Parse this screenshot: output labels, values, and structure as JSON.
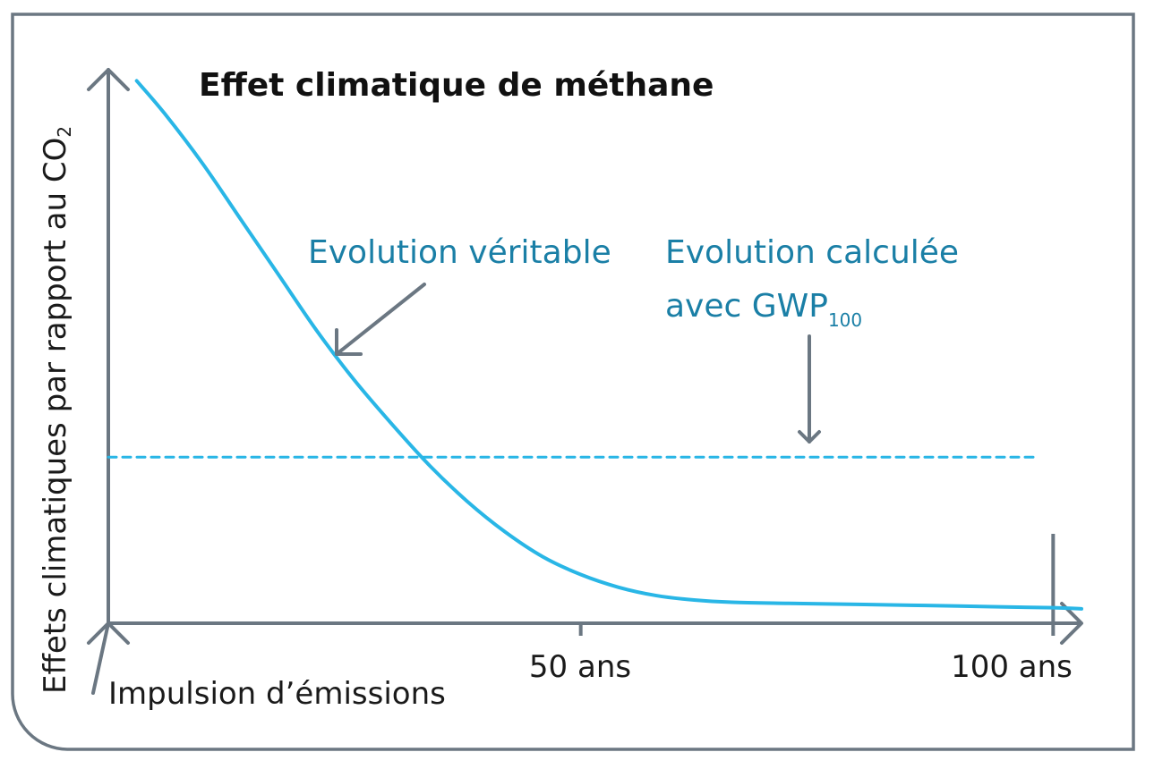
{
  "chart_data": {
    "type": "line",
    "title": "Effet climatique de méthane",
    "ylabel": {
      "main": "Effets climatiques par rapport au CO",
      "subscript": "2"
    },
    "xlabel": "",
    "x_origin_label": "Impulsion d’émissions",
    "x_ticks": [
      {
        "value": 50,
        "label": "50 ans"
      },
      {
        "value": 100,
        "label": "100 ans"
      }
    ],
    "xlim": [
      0,
      103
    ],
    "ylim": [
      0,
      1
    ],
    "series": [
      {
        "label": "Evolution véritable",
        "style": "solid",
        "color": "#29b6e6",
        "points": [
          [
            3,
            0.98
          ],
          [
            6,
            0.92
          ],
          [
            10,
            0.83
          ],
          [
            14,
            0.73
          ],
          [
            18,
            0.63
          ],
          [
            22,
            0.53
          ],
          [
            26,
            0.44
          ],
          [
            30,
            0.36
          ],
          [
            34,
            0.285
          ],
          [
            38,
            0.22
          ],
          [
            42,
            0.165
          ],
          [
            46,
            0.12
          ],
          [
            50,
            0.088
          ],
          [
            54,
            0.065
          ],
          [
            58,
            0.05
          ],
          [
            62,
            0.042
          ],
          [
            66,
            0.038
          ],
          [
            72,
            0.036
          ],
          [
            80,
            0.034
          ],
          [
            90,
            0.031
          ],
          [
            100,
            0.028
          ],
          [
            103,
            0.026
          ]
        ]
      },
      {
        "label_main": "Evolution calculée",
        "label_line2": "avec GWP",
        "label_subscript": "100",
        "style": "dashed",
        "color": "#29b6e6",
        "points": [
          [
            0,
            0.3
          ],
          [
            98.5,
            0.3
          ]
        ]
      }
    ],
    "marker_line_x": 100
  }
}
